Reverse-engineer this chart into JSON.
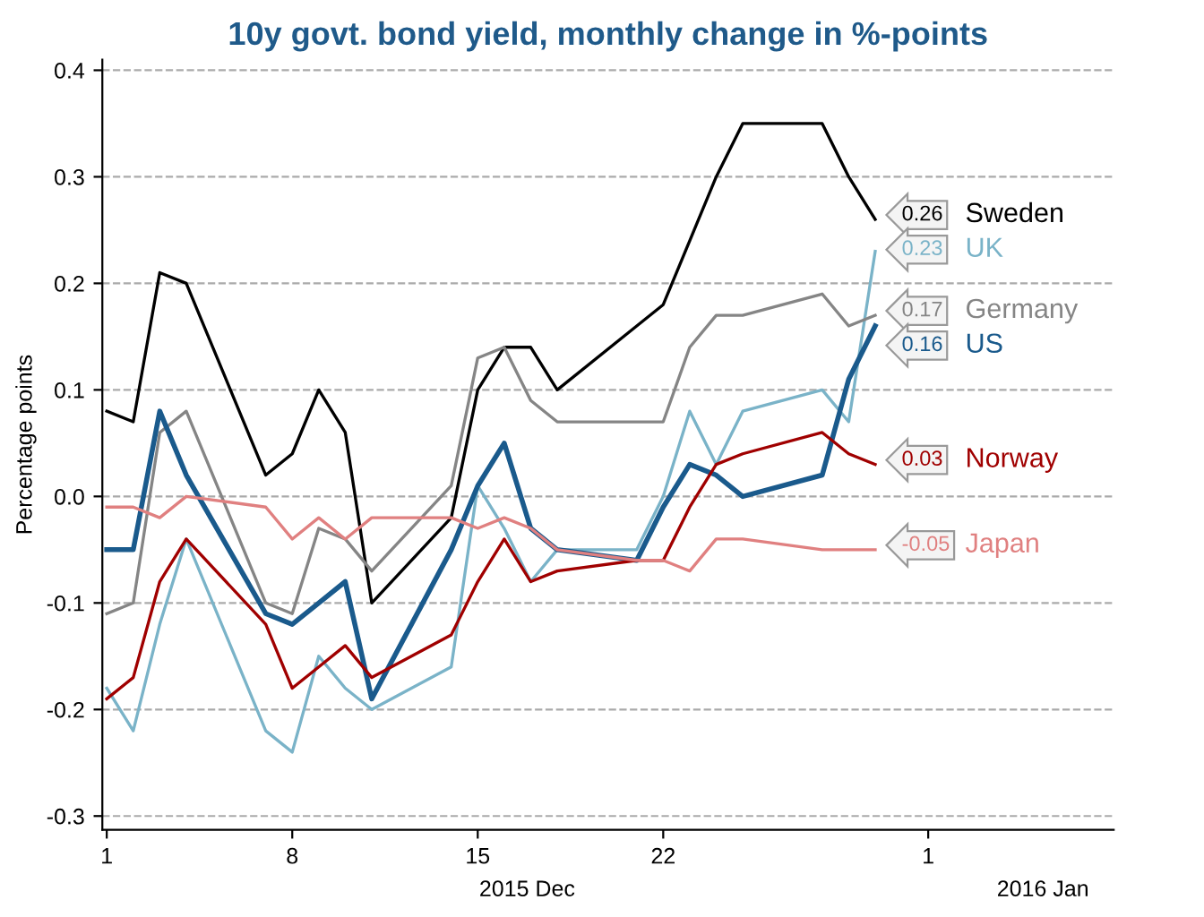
{
  "chart_data": {
    "type": "line",
    "title": "10y govt. bond yield, monthly change in %-points",
    "ylabel": "Percentage points",
    "x": [
      "2015-12-01",
      "2015-12-02",
      "2015-12-03",
      "2015-12-04",
      "2015-12-07",
      "2015-12-08",
      "2015-12-09",
      "2015-12-10",
      "2015-12-11",
      "2015-12-14",
      "2015-12-15",
      "2015-12-16",
      "2015-12-17",
      "2015-12-18",
      "2015-12-21",
      "2015-12-22",
      "2015-12-23",
      "2015-12-24",
      "2015-12-25",
      "2015-12-28",
      "2015-12-29",
      "2015-12-30"
    ],
    "series": [
      {
        "name": "Sweden",
        "color": "#000000",
        "values": [
          0.08,
          0.07,
          0.21,
          0.2,
          0.02,
          0.04,
          0.1,
          0.06,
          -0.1,
          -0.02,
          0.1,
          0.14,
          0.14,
          0.1,
          0.16,
          0.18,
          0.24,
          0.3,
          0.35,
          0.35,
          0.3,
          0.26
        ],
        "value_labels": [
          null,
          null,
          null,
          null,
          null,
          null,
          null,
          null,
          null,
          null,
          null,
          null,
          null,
          null,
          null,
          null,
          null,
          null,
          null,
          null,
          null,
          "0.26"
        ]
      },
      {
        "name": "UK",
        "color": "#7ab3c8",
        "values": [
          -0.18,
          -0.22,
          -0.12,
          -0.04,
          -0.22,
          -0.24,
          -0.15,
          -0.18,
          -0.2,
          -0.16,
          0.01,
          -0.03,
          -0.08,
          -0.05,
          -0.05,
          0.0,
          0.08,
          0.03,
          0.08,
          0.1,
          0.07,
          0.23
        ],
        "value_labels": [
          null,
          null,
          null,
          null,
          null,
          null,
          null,
          null,
          null,
          null,
          null,
          null,
          null,
          null,
          null,
          null,
          null,
          null,
          null,
          null,
          null,
          "0.23"
        ]
      },
      {
        "name": "Germany",
        "color": "#858585",
        "values": [
          -0.11,
          -0.1,
          0.06,
          0.08,
          -0.1,
          -0.11,
          -0.03,
          -0.04,
          -0.07,
          0.01,
          0.13,
          0.14,
          0.09,
          0.07,
          0.07,
          0.07,
          0.14,
          0.17,
          0.17,
          0.19,
          0.16,
          0.17
        ],
        "value_labels": [
          null,
          null,
          null,
          null,
          null,
          null,
          null,
          null,
          null,
          null,
          null,
          null,
          null,
          null,
          null,
          null,
          null,
          null,
          null,
          null,
          null,
          "0.17"
        ]
      },
      {
        "name": "US",
        "color": "#1a5a8c",
        "values": [
          -0.05,
          -0.05,
          0.08,
          0.02,
          -0.11,
          -0.12,
          -0.1,
          -0.08,
          -0.19,
          -0.05,
          0.01,
          0.05,
          -0.03,
          -0.05,
          -0.06,
          -0.01,
          0.03,
          0.02,
          0.0,
          0.02,
          0.11,
          0.16
        ],
        "value_labels": [
          null,
          null,
          null,
          null,
          null,
          null,
          null,
          null,
          null,
          null,
          null,
          null,
          null,
          null,
          null,
          null,
          null,
          null,
          null,
          null,
          null,
          "0.16"
        ]
      },
      {
        "name": "Norway",
        "color": "#a00000",
        "values": [
          -0.19,
          -0.17,
          -0.08,
          -0.04,
          -0.12,
          -0.18,
          -0.16,
          -0.14,
          -0.17,
          -0.13,
          -0.08,
          -0.04,
          -0.08,
          -0.07,
          -0.06,
          -0.06,
          -0.01,
          0.03,
          0.04,
          0.06,
          0.04,
          0.03
        ],
        "value_labels": [
          null,
          null,
          null,
          null,
          null,
          null,
          null,
          null,
          null,
          null,
          null,
          null,
          null,
          null,
          null,
          null,
          null,
          null,
          null,
          null,
          null,
          "0.03"
        ]
      },
      {
        "name": "Japan",
        "color": "#e08080",
        "values": [
          -0.01,
          -0.01,
          -0.02,
          0.0,
          -0.01,
          -0.04,
          -0.02,
          -0.04,
          -0.02,
          -0.02,
          -0.03,
          -0.02,
          -0.03,
          -0.05,
          -0.06,
          -0.06,
          -0.07,
          -0.04,
          -0.04,
          -0.05,
          -0.05,
          -0.05
        ],
        "value_labels": [
          null,
          null,
          null,
          null,
          null,
          null,
          null,
          null,
          null,
          null,
          null,
          null,
          null,
          null,
          null,
          null,
          null,
          null,
          null,
          null,
          null,
          "-0.05"
        ]
      }
    ],
    "xlim": [
      "2015-11-30T20:00",
      "2016-01-08"
    ],
    "xticks": [
      {
        "value": "2015-12-01",
        "label": "1"
      },
      {
        "value": "2015-12-08",
        "label": "8"
      },
      {
        "value": "2015-12-15",
        "label": "15"
      },
      {
        "value": "2015-12-22",
        "label": "22"
      },
      {
        "value": "2016-01-01",
        "label": "1"
      }
    ],
    "ylim": [
      -0.313,
      0.41
    ],
    "yticks": [
      -0.3,
      -0.2,
      -0.1,
      {
        "value": 0,
        "label": "0.0"
      },
      0.1,
      0.2,
      0.3,
      0.4
    ],
    "grid": "y",
    "legend": false,
    "marker": "none",
    "line_style": "solid",
    "annotations": [
      "2015 Dec",
      "2016 Jan"
    ]
  }
}
